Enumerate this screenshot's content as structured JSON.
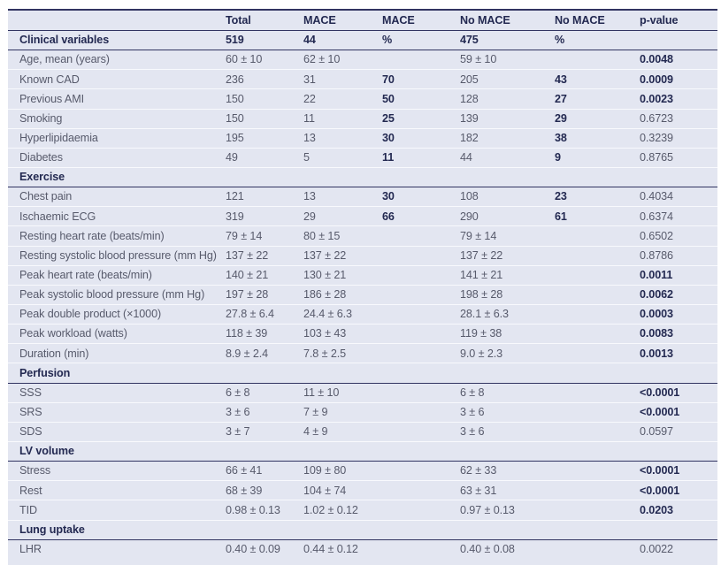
{
  "colors": {
    "table_background": "#e3e6f1",
    "dark_rule": "#313461",
    "text_bold": "#232951",
    "text_regular": "#575a6b",
    "row_separator": "#f8f9fd"
  },
  "table": {
    "columns": [
      "",
      "Total",
      "MACE",
      "MACE",
      "No MACE",
      "No MACE",
      "p-value"
    ],
    "subheader": {
      "label": "Clinical variables",
      "cells": [
        "519",
        "44",
        "%",
        "475",
        "%",
        ""
      ]
    },
    "rows": [
      {
        "label": "Age, mean (years)",
        "cells": [
          {
            "t": "60 ± 10"
          },
          {
            "t": "62 ± 10"
          },
          {
            "t": ""
          },
          {
            "t": "59 ± 10"
          },
          {
            "t": ""
          },
          {
            "t": "0.0048",
            "b": true
          }
        ]
      },
      {
        "label": "Known CAD",
        "cells": [
          {
            "t": "236"
          },
          {
            "t": "31"
          },
          {
            "t": "70",
            "b": true
          },
          {
            "t": "205"
          },
          {
            "t": "43",
            "b": true
          },
          {
            "t": "0.0009",
            "b": true
          }
        ]
      },
      {
        "label": "Previous AMI",
        "cells": [
          {
            "t": "150"
          },
          {
            "t": "22"
          },
          {
            "t": "50",
            "b": true
          },
          {
            "t": "128"
          },
          {
            "t": "27",
            "b": true
          },
          {
            "t": "0.0023",
            "b": true
          }
        ]
      },
      {
        "label": "Smoking",
        "cells": [
          {
            "t": "150"
          },
          {
            "t": "11"
          },
          {
            "t": "25",
            "b": true
          },
          {
            "t": "139"
          },
          {
            "t": "29",
            "b": true
          },
          {
            "t": "0.6723"
          }
        ]
      },
      {
        "label": "Hyperlipidaemia",
        "cells": [
          {
            "t": "195"
          },
          {
            "t": "13"
          },
          {
            "t": "30",
            "b": true
          },
          {
            "t": "182"
          },
          {
            "t": "38",
            "b": true
          },
          {
            "t": "0.3239"
          }
        ]
      },
      {
        "label": "Diabetes",
        "cells": [
          {
            "t": "49"
          },
          {
            "t": "5"
          },
          {
            "t": "11",
            "b": true
          },
          {
            "t": "44"
          },
          {
            "t": "9",
            "b": true
          },
          {
            "t": "0.8765"
          }
        ]
      },
      {
        "label": "Exercise",
        "section": true
      },
      {
        "label": "Chest pain",
        "cells": [
          {
            "t": "121"
          },
          {
            "t": "13"
          },
          {
            "t": "30",
            "b": true
          },
          {
            "t": "108"
          },
          {
            "t": "23",
            "b": true
          },
          {
            "t": "0.4034"
          }
        ]
      },
      {
        "label": "Ischaemic ECG",
        "cells": [
          {
            "t": "319"
          },
          {
            "t": "29"
          },
          {
            "t": "66",
            "b": true
          },
          {
            "t": "290"
          },
          {
            "t": "61",
            "b": true
          },
          {
            "t": "0.6374"
          }
        ]
      },
      {
        "label": "Resting heart rate (beats/min)",
        "cells": [
          {
            "t": "79 ± 14"
          },
          {
            "t": "80 ± 15"
          },
          {
            "t": ""
          },
          {
            "t": "79 ± 14"
          },
          {
            "t": ""
          },
          {
            "t": "0.6502"
          }
        ]
      },
      {
        "label": "Resting systolic blood pressure (mm Hg)",
        "cells": [
          {
            "t": "137 ± 22"
          },
          {
            "t": "137 ± 22"
          },
          {
            "t": ""
          },
          {
            "t": "137 ± 22"
          },
          {
            "t": ""
          },
          {
            "t": "0.8786"
          }
        ]
      },
      {
        "label": "Peak heart rate (beats/min)",
        "cells": [
          {
            "t": "140 ± 21"
          },
          {
            "t": "130 ± 21"
          },
          {
            "t": ""
          },
          {
            "t": "141 ± 21"
          },
          {
            "t": ""
          },
          {
            "t": "0.0011",
            "b": true
          }
        ]
      },
      {
        "label": "Peak systolic blood pressure (mm Hg)",
        "cells": [
          {
            "t": "197 ± 28"
          },
          {
            "t": "186 ± 28"
          },
          {
            "t": ""
          },
          {
            "t": "198 ± 28"
          },
          {
            "t": ""
          },
          {
            "t": "0.0062",
            "b": true
          }
        ]
      },
      {
        "label": "Peak double product (×1000)",
        "cells": [
          {
            "t": "27.8 ± 6.4"
          },
          {
            "t": "24.4 ± 6.3"
          },
          {
            "t": ""
          },
          {
            "t": "28.1 ± 6.3"
          },
          {
            "t": ""
          },
          {
            "t": "0.0003",
            "b": true
          }
        ]
      },
      {
        "label": "Peak workload (watts)",
        "cells": [
          {
            "t": "118 ± 39"
          },
          {
            "t": "103 ± 43"
          },
          {
            "t": ""
          },
          {
            "t": "119 ± 38"
          },
          {
            "t": ""
          },
          {
            "t": "0.0083",
            "b": true
          }
        ]
      },
      {
        "label": "Duration (min)",
        "cells": [
          {
            "t": "8.9 ± 2.4"
          },
          {
            "t": "7.8 ± 2.5"
          },
          {
            "t": ""
          },
          {
            "t": "9.0 ± 2.3"
          },
          {
            "t": ""
          },
          {
            "t": "0.0013",
            "b": true
          }
        ]
      },
      {
        "label": "Perfusion",
        "section": true
      },
      {
        "label": "SSS",
        "cells": [
          {
            "t": "6 ± 8"
          },
          {
            "t": "11 ± 10"
          },
          {
            "t": ""
          },
          {
            "t": "6 ± 8"
          },
          {
            "t": ""
          },
          {
            "t": "<0.0001",
            "b": true
          }
        ]
      },
      {
        "label": "SRS",
        "cells": [
          {
            "t": "3 ± 6"
          },
          {
            "t": "7 ± 9"
          },
          {
            "t": ""
          },
          {
            "t": "3 ± 6"
          },
          {
            "t": ""
          },
          {
            "t": "<0.0001",
            "b": true
          }
        ]
      },
      {
        "label": "SDS",
        "cells": [
          {
            "t": "3 ± 7"
          },
          {
            "t": "4 ± 9"
          },
          {
            "t": ""
          },
          {
            "t": "3 ± 6"
          },
          {
            "t": ""
          },
          {
            "t": "0.0597"
          }
        ]
      },
      {
        "label": "LV volume",
        "section": true
      },
      {
        "label": "Stress",
        "cells": [
          {
            "t": "66 ± 41"
          },
          {
            "t": "109 ± 80"
          },
          {
            "t": ""
          },
          {
            "t": "62 ± 33"
          },
          {
            "t": ""
          },
          {
            "t": "<0.0001",
            "b": true
          }
        ]
      },
      {
        "label": "Rest",
        "cells": [
          {
            "t": "68 ± 39"
          },
          {
            "t": "104 ± 74"
          },
          {
            "t": ""
          },
          {
            "t": "63 ± 31"
          },
          {
            "t": ""
          },
          {
            "t": "<0.0001",
            "b": true
          }
        ]
      },
      {
        "label": "TID",
        "cells": [
          {
            "t": "0.98 ± 0.13"
          },
          {
            "t": "1.02 ± 0.12"
          },
          {
            "t": ""
          },
          {
            "t": "0.97 ± 0.13"
          },
          {
            "t": ""
          },
          {
            "t": "0.0203",
            "b": true
          }
        ]
      },
      {
        "label": "Lung uptake",
        "section": true
      },
      {
        "label": "LHR",
        "cells": [
          {
            "t": "0.40 ± 0.09"
          },
          {
            "t": "0.44 ± 0.12"
          },
          {
            "t": ""
          },
          {
            "t": "0.40 ± 0.08"
          },
          {
            "t": ""
          },
          {
            "t": "0.0022"
          }
        ]
      }
    ]
  }
}
